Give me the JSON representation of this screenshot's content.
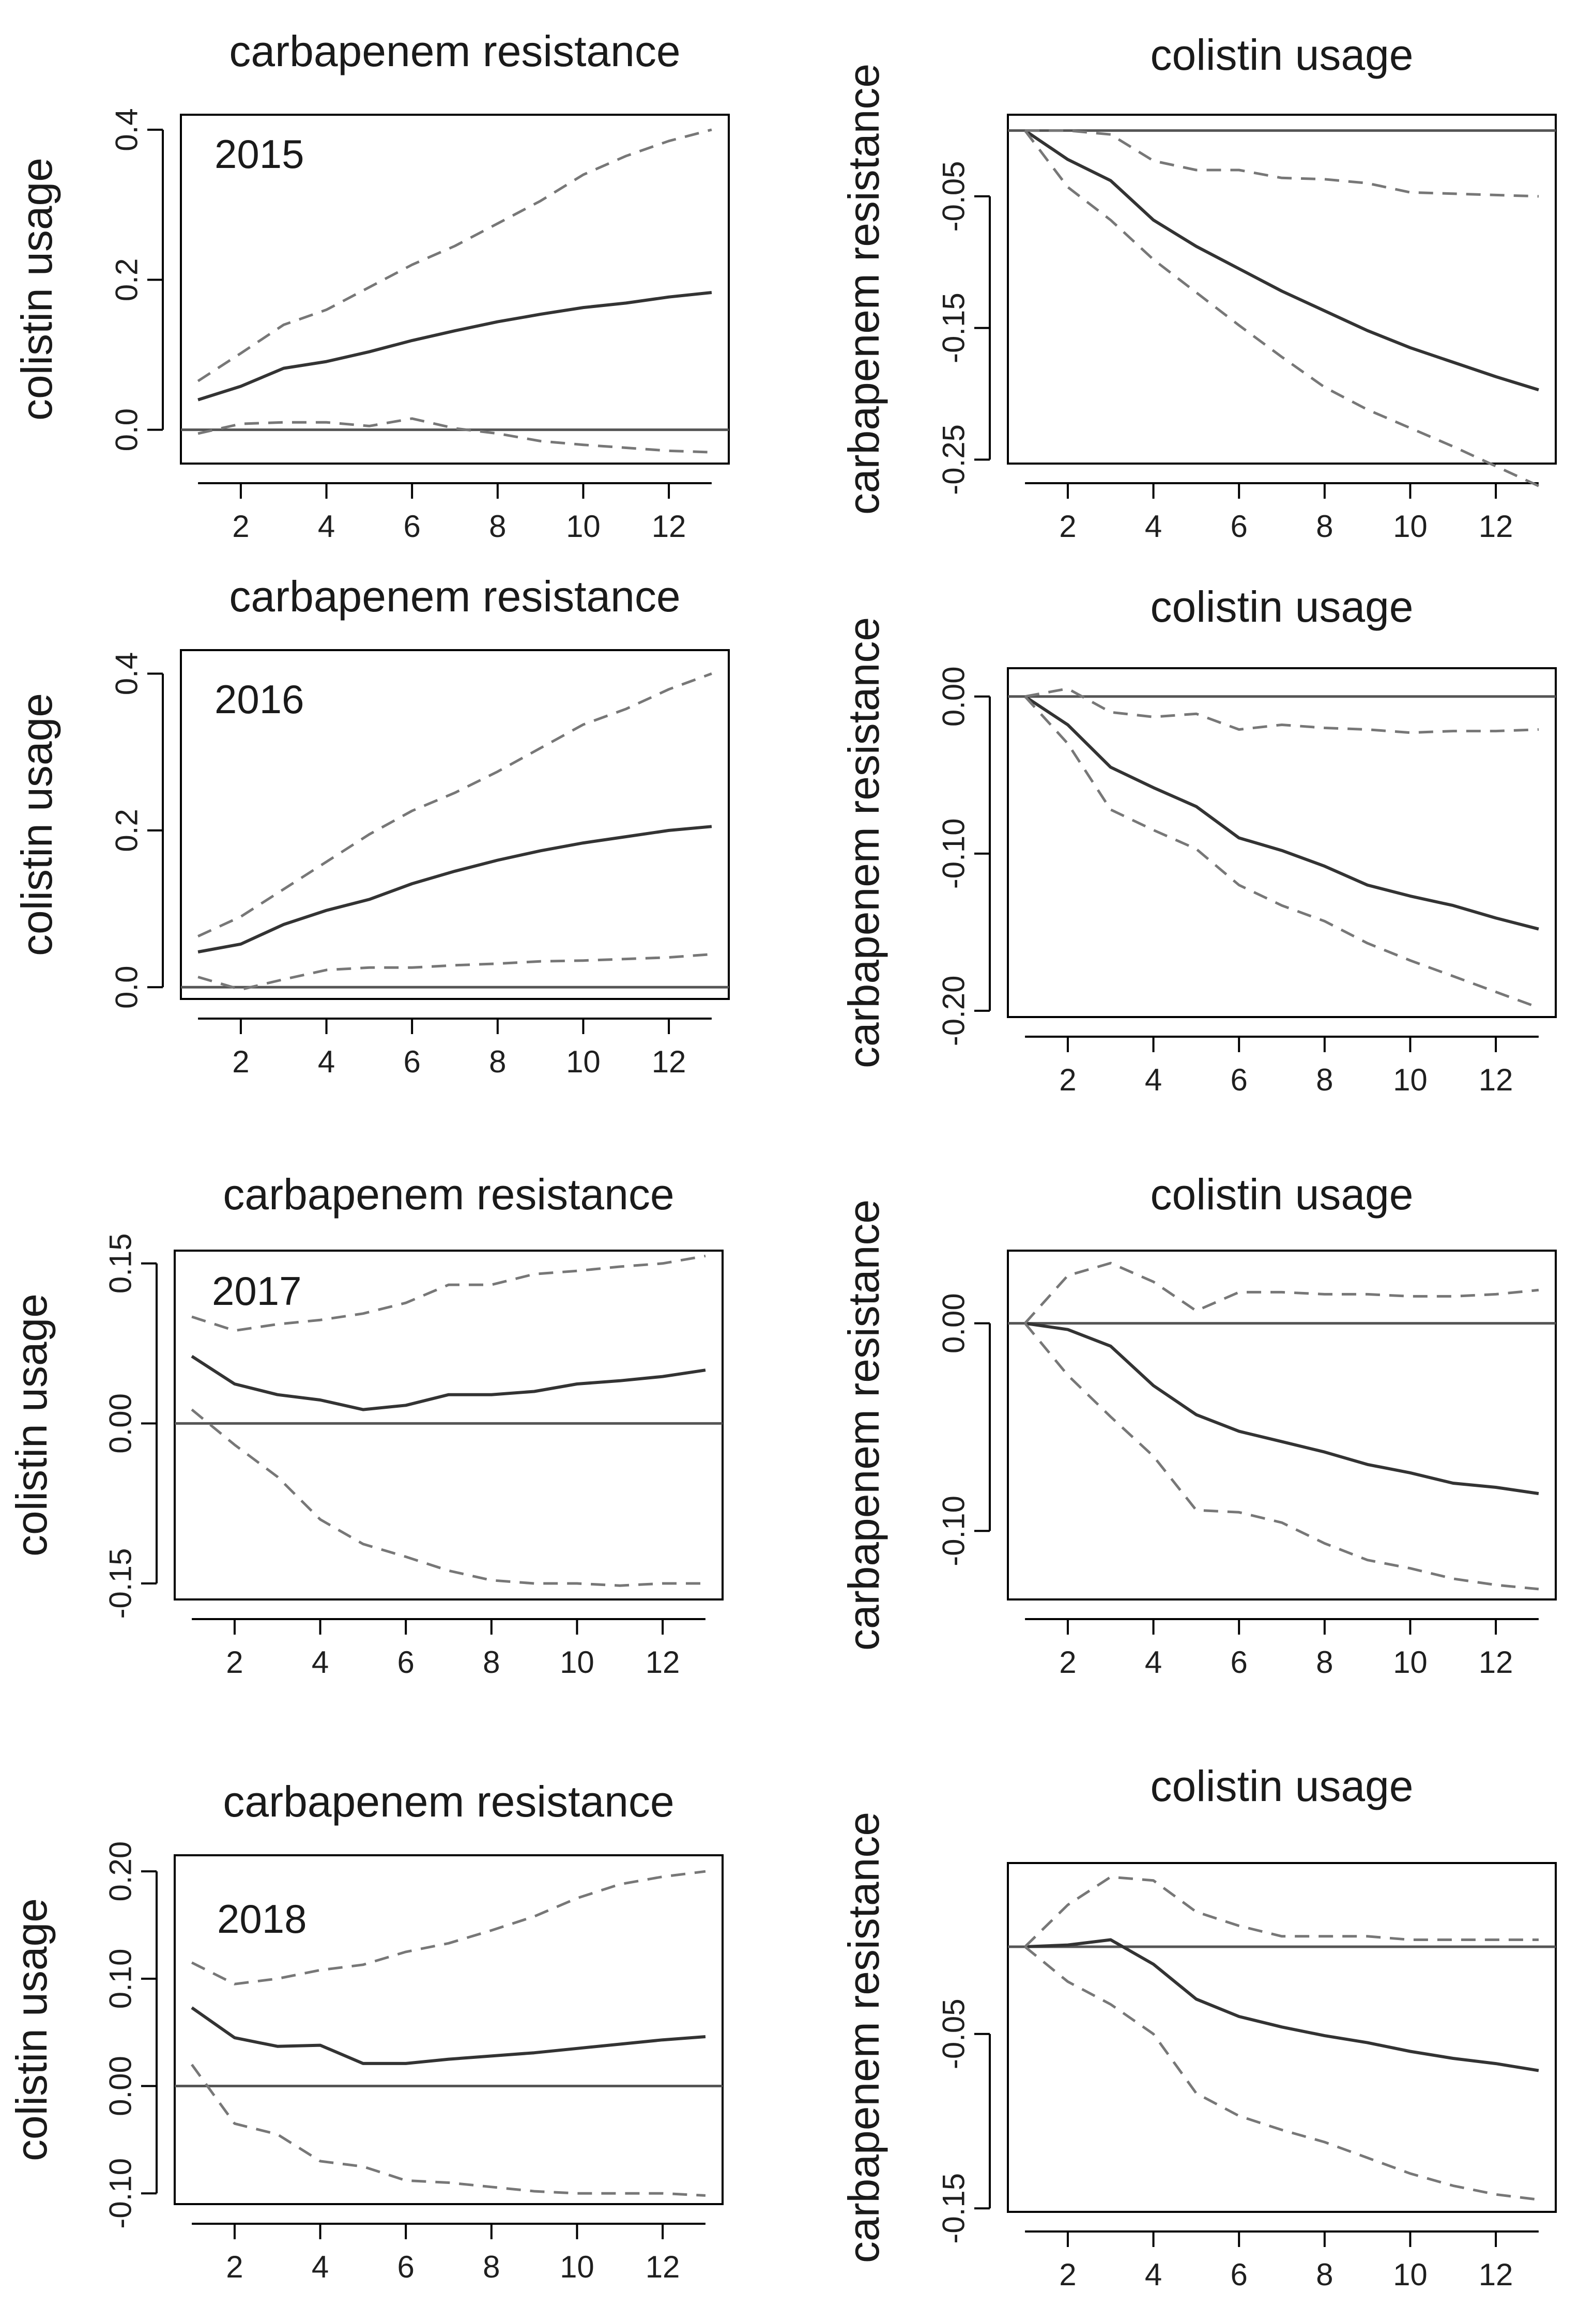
{
  "chart_data": [
    {
      "type": "line",
      "year_label": "2015",
      "title": "carbapenem resistance",
      "ylabel": "colistin usage",
      "ylim": [
        -0.045,
        0.42
      ],
      "yticks": [
        0.0,
        0.2,
        0.4
      ],
      "ytick_labels": [
        "0.0",
        "0.2",
        "0.4"
      ],
      "xlim": [
        0.6,
        13.4
      ],
      "xticks": [
        2,
        4,
        6,
        8,
        10,
        12
      ],
      "xtick_labels": [
        "2",
        "4",
        "6",
        "8",
        "10",
        "12"
      ],
      "x": [
        1,
        2,
        3,
        4,
        5,
        6,
        7,
        8,
        9,
        10,
        11,
        12,
        13
      ],
      "series": [
        {
          "name": "response",
          "style": "solid",
          "values": [
            0.04,
            0.058,
            0.082,
            0.091,
            0.104,
            0.119,
            0.132,
            0.144,
            0.154,
            0.163,
            0.169,
            0.177,
            0.183
          ]
        },
        {
          "name": "upper",
          "style": "dashed",
          "values": [
            0.065,
            0.102,
            0.14,
            0.16,
            0.19,
            0.22,
            0.245,
            0.275,
            0.305,
            0.34,
            0.365,
            0.385,
            0.4
          ]
        },
        {
          "name": "lower",
          "style": "dashed",
          "values": [
            -0.005,
            0.008,
            0.01,
            0.01,
            0.005,
            0.015,
            0.002,
            -0.005,
            -0.015,
            -0.02,
            -0.024,
            -0.028,
            -0.03
          ]
        }
      ]
    },
    {
      "type": "line",
      "title": "colistin usage",
      "ylabel": "carbapenem resistance",
      "ylim": [
        -0.253,
        0.012
      ],
      "yticks": [
        -0.05,
        -0.15,
        -0.25
      ],
      "ytick_labels": [
        "-0.05",
        "-0.15",
        "-0.25"
      ],
      "xlim": [
        0.6,
        13.4
      ],
      "xticks": [
        2,
        4,
        6,
        8,
        10,
        12
      ],
      "xtick_labels": [
        "2",
        "4",
        "6",
        "8",
        "10",
        "12"
      ],
      "x": [
        1,
        2,
        3,
        4,
        5,
        6,
        7,
        8,
        9,
        10,
        11,
        12,
        13
      ],
      "series": [
        {
          "name": "response",
          "style": "solid",
          "values": [
            0.0,
            -0.022,
            -0.038,
            -0.068,
            -0.088,
            -0.105,
            -0.122,
            -0.137,
            -0.152,
            -0.165,
            -0.176,
            -0.187,
            -0.197
          ]
        },
        {
          "name": "upper",
          "style": "dashed",
          "values": [
            0.0,
            0.0,
            -0.003,
            -0.023,
            -0.03,
            -0.03,
            -0.036,
            -0.037,
            -0.04,
            -0.047,
            -0.048,
            -0.049,
            -0.05
          ]
        },
        {
          "name": "lower",
          "style": "dashed",
          "values": [
            0.0,
            -0.043,
            -0.068,
            -0.098,
            -0.123,
            -0.148,
            -0.172,
            -0.195,
            -0.212,
            -0.226,
            -0.24,
            -0.255,
            -0.27
          ]
        }
      ]
    },
    {
      "type": "line",
      "year_label": "2016",
      "title": "carbapenem resistance",
      "ylabel": "colistin usage",
      "ylim": [
        -0.015,
        0.43
      ],
      "yticks": [
        0.0,
        0.2,
        0.4
      ],
      "ytick_labels": [
        "0.0",
        "0.2",
        "0.4"
      ],
      "xlim": [
        0.6,
        13.4
      ],
      "xticks": [
        2,
        4,
        6,
        8,
        10,
        12
      ],
      "xtick_labels": [
        "2",
        "4",
        "6",
        "8",
        "10",
        "12"
      ],
      "x": [
        1,
        2,
        3,
        4,
        5,
        6,
        7,
        8,
        9,
        10,
        11,
        12,
        13
      ],
      "series": [
        {
          "name": "response",
          "style": "solid",
          "values": [
            0.045,
            0.055,
            0.08,
            0.098,
            0.112,
            0.132,
            0.148,
            0.162,
            0.174,
            0.184,
            0.192,
            0.2,
            0.205
          ]
        },
        {
          "name": "upper",
          "style": "dashed",
          "values": [
            0.065,
            0.09,
            0.125,
            0.16,
            0.195,
            0.225,
            0.248,
            0.275,
            0.305,
            0.335,
            0.355,
            0.38,
            0.4
          ]
        },
        {
          "name": "lower",
          "style": "dashed",
          "values": [
            0.013,
            -0.003,
            0.01,
            0.022,
            0.025,
            0.025,
            0.028,
            0.03,
            0.033,
            0.034,
            0.036,
            0.038,
            0.042
          ]
        }
      ]
    },
    {
      "type": "line",
      "title": "colistin usage",
      "ylabel": "carbapenem resistance",
      "ylim": [
        -0.204,
        0.018
      ],
      "yticks": [
        0.0,
        -0.1,
        -0.2
      ],
      "ytick_labels": [
        "0.00",
        "-0.10",
        "-0.20"
      ],
      "xlim": [
        0.6,
        13.4
      ],
      "xticks": [
        2,
        4,
        6,
        8,
        10,
        12
      ],
      "xtick_labels": [
        "2",
        "4",
        "6",
        "8",
        "10",
        "12"
      ],
      "x": [
        1,
        2,
        3,
        4,
        5,
        6,
        7,
        8,
        9,
        10,
        11,
        12,
        13
      ],
      "series": [
        {
          "name": "response",
          "style": "solid",
          "values": [
            0.0,
            -0.018,
            -0.045,
            -0.058,
            -0.07,
            -0.09,
            -0.098,
            -0.108,
            -0.12,
            -0.127,
            -0.133,
            -0.141,
            -0.148
          ]
        },
        {
          "name": "upper",
          "style": "dashed",
          "values": [
            0.0,
            0.005,
            -0.01,
            -0.013,
            -0.011,
            -0.021,
            -0.018,
            -0.02,
            -0.021,
            -0.023,
            -0.022,
            -0.022,
            -0.021
          ]
        },
        {
          "name": "lower",
          "style": "dashed",
          "values": [
            0.0,
            -0.03,
            -0.072,
            -0.085,
            -0.097,
            -0.12,
            -0.133,
            -0.143,
            -0.157,
            -0.168,
            -0.178,
            -0.188,
            -0.198
          ]
        }
      ]
    },
    {
      "type": "line",
      "year_label": "2017",
      "title": "carbapenem resistance",
      "ylabel": "colistin usage",
      "ylim": [
        -0.165,
        0.162
      ],
      "yticks": [
        0.15,
        0.0,
        -0.15
      ],
      "ytick_labels": [
        "0.15",
        "0.00",
        "-0.15"
      ],
      "xlim": [
        0.6,
        13.4
      ],
      "xticks": [
        2,
        4,
        6,
        8,
        10,
        12
      ],
      "xtick_labels": [
        "2",
        "4",
        "6",
        "8",
        "10",
        "12"
      ],
      "x": [
        1,
        2,
        3,
        4,
        5,
        6,
        7,
        8,
        9,
        10,
        11,
        12,
        13
      ],
      "series": [
        {
          "name": "response",
          "style": "solid",
          "values": [
            0.063,
            0.037,
            0.027,
            0.022,
            0.013,
            0.017,
            0.027,
            0.027,
            0.03,
            0.037,
            0.04,
            0.044,
            0.05
          ]
        },
        {
          "name": "upper",
          "style": "dashed",
          "values": [
            0.1,
            0.087,
            0.093,
            0.097,
            0.103,
            0.113,
            0.13,
            0.13,
            0.14,
            0.143,
            0.147,
            0.15,
            0.157
          ]
        },
        {
          "name": "lower",
          "style": "dashed",
          "values": [
            0.013,
            -0.02,
            -0.05,
            -0.09,
            -0.113,
            -0.125,
            -0.138,
            -0.147,
            -0.15,
            -0.15,
            -0.152,
            -0.15,
            -0.15
          ]
        }
      ]
    },
    {
      "type": "line",
      "title": "colistin usage",
      "ylabel": "carbapenem resistance",
      "ylim": [
        -0.133,
        0.035
      ],
      "yticks": [
        0.0,
        -0.1
      ],
      "ytick_labels": [
        "0.00",
        "-0.10"
      ],
      "xlim": [
        0.6,
        13.4
      ],
      "xticks": [
        2,
        4,
        6,
        8,
        10,
        12
      ],
      "xtick_labels": [
        "2",
        "4",
        "6",
        "8",
        "10",
        "12"
      ],
      "x": [
        1,
        2,
        3,
        4,
        5,
        6,
        7,
        8,
        9,
        10,
        11,
        12,
        13
      ],
      "series": [
        {
          "name": "response",
          "style": "solid",
          "values": [
            0.0,
            -0.003,
            -0.011,
            -0.03,
            -0.044,
            -0.052,
            -0.057,
            -0.062,
            -0.068,
            -0.072,
            -0.077,
            -0.079,
            -0.082
          ]
        },
        {
          "name": "upper",
          "style": "dashed",
          "values": [
            0.0,
            0.023,
            0.029,
            0.02,
            0.006,
            0.015,
            0.015,
            0.014,
            0.014,
            0.013,
            0.013,
            0.014,
            0.016
          ]
        },
        {
          "name": "lower",
          "style": "dashed",
          "values": [
            0.0,
            -0.025,
            -0.045,
            -0.064,
            -0.09,
            -0.091,
            -0.096,
            -0.106,
            -0.114,
            -0.118,
            -0.123,
            -0.126,
            -0.128
          ]
        }
      ]
    },
    {
      "type": "line",
      "year_label": "2018",
      "title": "carbapenem resistance",
      "ylabel": "colistin usage",
      "ylim": [
        -0.11,
        0.215
      ],
      "yticks": [
        0.2,
        0.1,
        0.0,
        -0.1
      ],
      "ytick_labels": [
        "0.20",
        "0.10",
        "0.00",
        "-0.10"
      ],
      "xlim": [
        0.6,
        13.4
      ],
      "xticks": [
        2,
        4,
        6,
        8,
        10,
        12
      ],
      "xtick_labels": [
        "2",
        "4",
        "6",
        "8",
        "10",
        "12"
      ],
      "x": [
        1,
        2,
        3,
        4,
        5,
        6,
        7,
        8,
        9,
        10,
        11,
        12,
        13
      ],
      "series": [
        {
          "name": "response",
          "style": "solid",
          "values": [
            0.073,
            0.045,
            0.037,
            0.038,
            0.021,
            0.021,
            0.025,
            0.028,
            0.031,
            0.035,
            0.039,
            0.043,
            0.046
          ]
        },
        {
          "name": "upper",
          "style": "dashed",
          "values": [
            0.115,
            0.095,
            0.1,
            0.108,
            0.113,
            0.125,
            0.133,
            0.145,
            0.158,
            0.175,
            0.188,
            0.195,
            0.2
          ]
        },
        {
          "name": "lower",
          "style": "dashed",
          "values": [
            0.02,
            -0.035,
            -0.045,
            -0.07,
            -0.075,
            -0.088,
            -0.09,
            -0.094,
            -0.098,
            -0.1,
            -0.1,
            -0.1,
            -0.102
          ]
        }
      ]
    },
    {
      "type": "line",
      "title": "colistin usage",
      "ylabel": "carbapenem resistance",
      "ylim": [
        -0.152,
        0.048
      ],
      "yticks": [
        -0.05,
        -0.15
      ],
      "ytick_labels": [
        "-0.05",
        "-0.15"
      ],
      "xlim": [
        0.6,
        13.4
      ],
      "xticks": [
        2,
        4,
        6,
        8,
        10,
        12
      ],
      "xtick_labels": [
        "2",
        "4",
        "6",
        "8",
        "10",
        "12"
      ],
      "x": [
        1,
        2,
        3,
        4,
        5,
        6,
        7,
        8,
        9,
        10,
        11,
        12,
        13
      ],
      "series": [
        {
          "name": "response",
          "style": "solid",
          "values": [
            0.0,
            0.001,
            0.004,
            -0.01,
            -0.03,
            -0.04,
            -0.046,
            -0.051,
            -0.055,
            -0.06,
            -0.064,
            -0.067,
            -0.071
          ]
        },
        {
          "name": "upper",
          "style": "dashed",
          "values": [
            0.0,
            0.024,
            0.04,
            0.038,
            0.02,
            0.012,
            0.006,
            0.006,
            0.006,
            0.004,
            0.004,
            0.004,
            0.004
          ]
        },
        {
          "name": "lower",
          "style": "dashed",
          "values": [
            0.0,
            -0.02,
            -0.033,
            -0.05,
            -0.084,
            -0.097,
            -0.105,
            -0.112,
            -0.121,
            -0.13,
            -0.137,
            -0.142,
            -0.145
          ]
        }
      ]
    }
  ]
}
